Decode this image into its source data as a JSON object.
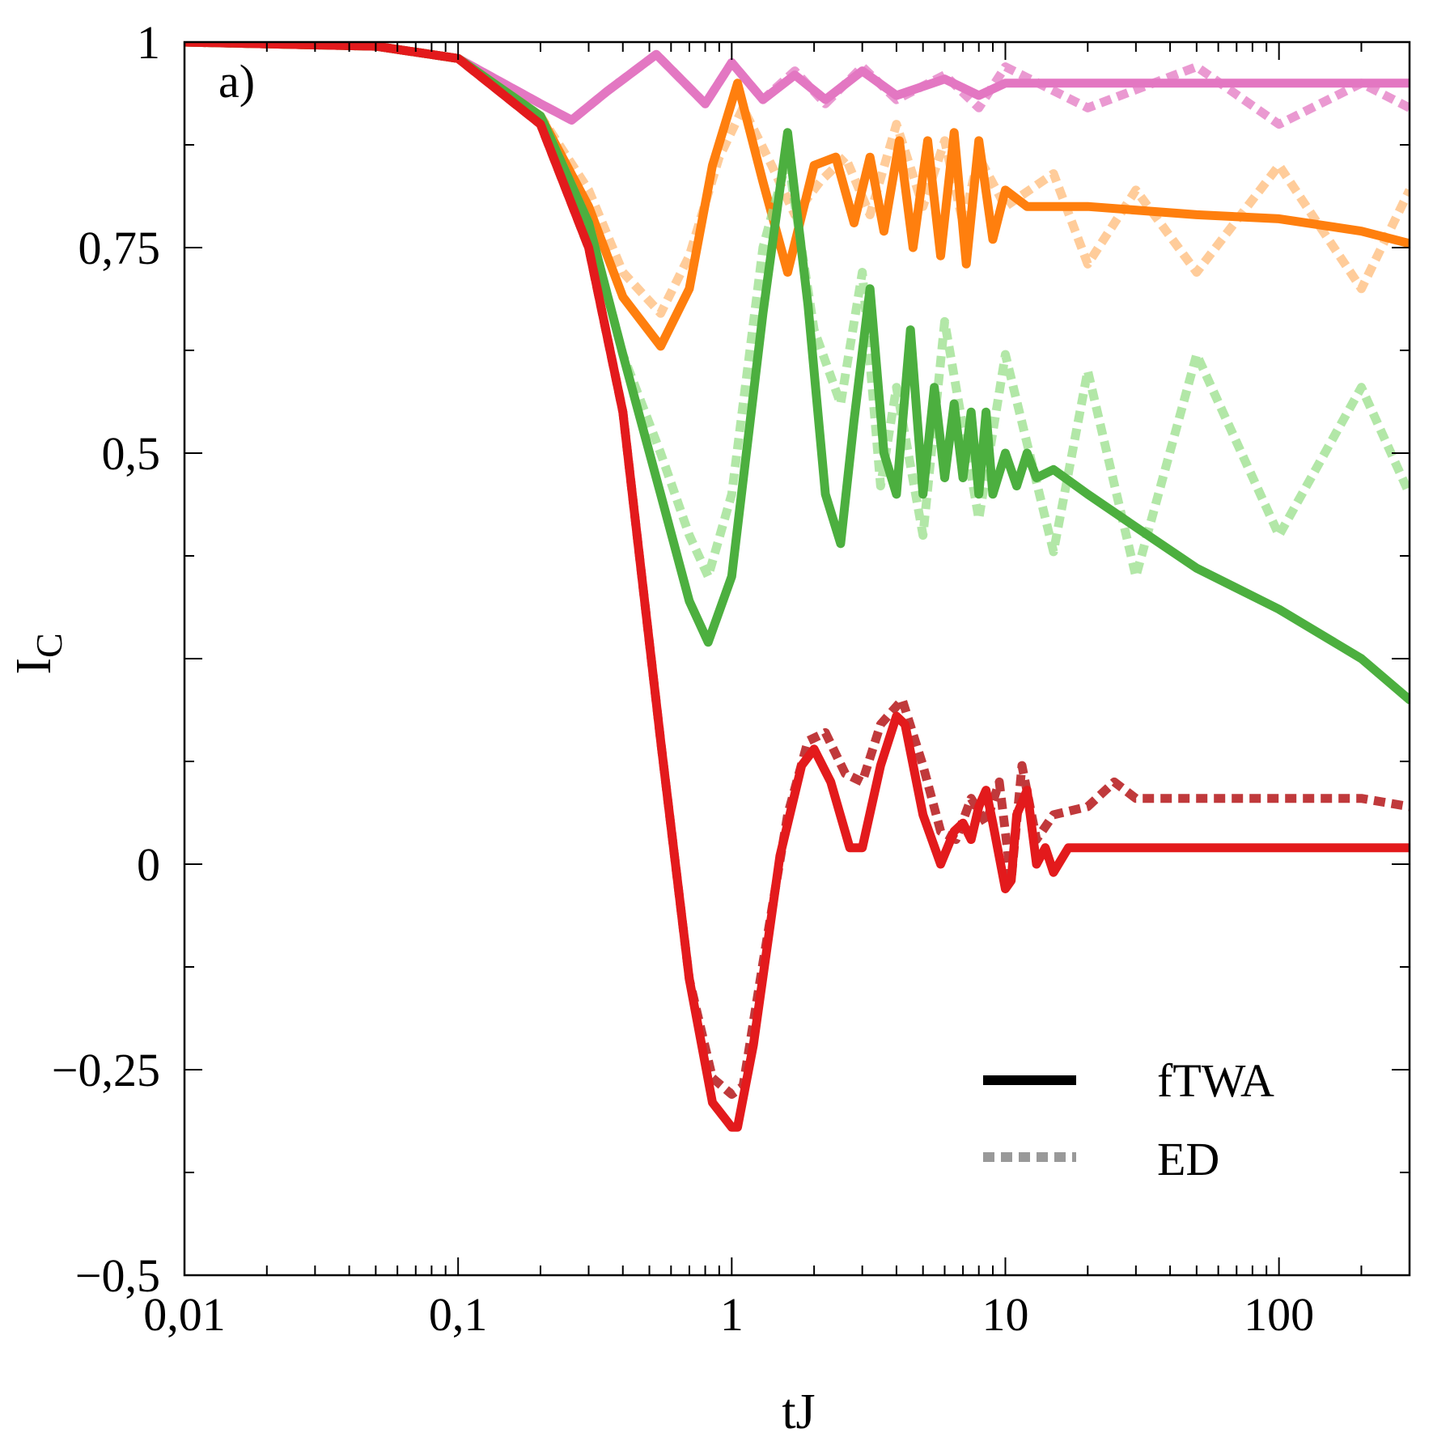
{
  "chart_data": {
    "type": "line",
    "panel_label": "a)",
    "xlabel": "tJ",
    "ylabel": "I",
    "ylabel_sub": "C",
    "xscale": "log",
    "xlim": [
      0.01,
      300
    ],
    "ylim": [
      -0.5,
      1
    ],
    "x_ticks": [
      {
        "value": 0.01,
        "label": "0,01"
      },
      {
        "value": 0.1,
        "label": "0,1"
      },
      {
        "value": 1,
        "label": "1"
      },
      {
        "value": 10,
        "label": "10"
      },
      {
        "value": 100,
        "label": "100"
      }
    ],
    "y_ticks": [
      {
        "value": 1,
        "label": "1"
      },
      {
        "value": 0.75,
        "label": "0,75"
      },
      {
        "value": 0.5,
        "label": "0,5"
      },
      {
        "value": 0,
        "label": "0"
      },
      {
        "value": -0.25,
        "label": "−0,25"
      },
      {
        "value": -0.5,
        "label": "−0,5"
      }
    ],
    "legend": {
      "placement": "bottom-right",
      "entries": [
        {
          "label": "fTWA",
          "style": "solid",
          "color": "#000000"
        },
        {
          "label": "ED",
          "style": "dotted",
          "color": "#999999"
        }
      ]
    },
    "series": [
      {
        "color": "#e377c2",
        "method": "ED",
        "x": [
          0.01,
          0.05,
          0.1,
          0.2,
          0.26,
          0.35,
          0.53,
          0.8,
          1.0,
          1.3,
          1.7,
          2.2,
          3,
          4,
          6,
          8,
          10,
          20,
          50,
          100,
          200,
          300
        ],
        "y": [
          1,
          0.995,
          0.98,
          0.925,
          0.905,
          0.94,
          0.985,
          0.925,
          0.975,
          0.93,
          0.965,
          0.925,
          0.97,
          0.93,
          0.96,
          0.92,
          0.97,
          0.92,
          0.97,
          0.9,
          0.95,
          0.92
        ]
      },
      {
        "color": "#e377c2",
        "method": "fTWA",
        "x": [
          0.01,
          0.05,
          0.1,
          0.2,
          0.26,
          0.35,
          0.53,
          0.8,
          1.0,
          1.3,
          1.7,
          2.2,
          3,
          4,
          6,
          8,
          10,
          20,
          50,
          100,
          200,
          300
        ],
        "y": [
          1,
          0.995,
          0.98,
          0.925,
          0.905,
          0.94,
          0.985,
          0.925,
          0.975,
          0.93,
          0.96,
          0.93,
          0.965,
          0.935,
          0.955,
          0.935,
          0.95,
          0.95,
          0.95,
          0.95,
          0.95,
          0.95
        ]
      },
      {
        "color": "#ffbb78",
        "method": "ED",
        "x": [
          0.01,
          0.05,
          0.1,
          0.2,
          0.3,
          0.4,
          0.55,
          0.7,
          0.9,
          1.1,
          1.4,
          1.7,
          2.1,
          2.6,
          3.2,
          4,
          5,
          6,
          7,
          8,
          10,
          15,
          20,
          30,
          50,
          100,
          200,
          300
        ],
        "y": [
          1,
          0.995,
          0.98,
          0.91,
          0.82,
          0.72,
          0.67,
          0.74,
          0.86,
          0.92,
          0.85,
          0.79,
          0.83,
          0.86,
          0.79,
          0.9,
          0.8,
          0.88,
          0.78,
          0.86,
          0.8,
          0.84,
          0.73,
          0.82,
          0.72,
          0.85,
          0.7,
          0.82
        ]
      },
      {
        "color": "#ff7f0e",
        "method": "fTWA",
        "x": [
          0.01,
          0.05,
          0.1,
          0.2,
          0.3,
          0.4,
          0.55,
          0.7,
          0.85,
          1.05,
          1.3,
          1.6,
          2.0,
          2.4,
          2.8,
          3.2,
          3.6,
          4.1,
          4.6,
          5.2,
          5.8,
          6.5,
          7.2,
          8,
          9,
          10,
          12,
          15,
          20,
          50,
          100,
          200,
          300
        ],
        "y": [
          1,
          0.995,
          0.98,
          0.91,
          0.8,
          0.69,
          0.63,
          0.7,
          0.85,
          0.95,
          0.83,
          0.72,
          0.85,
          0.86,
          0.78,
          0.86,
          0.77,
          0.88,
          0.75,
          0.88,
          0.74,
          0.89,
          0.73,
          0.88,
          0.76,
          0.82,
          0.8,
          0.8,
          0.8,
          0.79,
          0.785,
          0.77,
          0.755
        ]
      },
      {
        "color": "#98df8a",
        "method": "ED",
        "x": [
          0.01,
          0.05,
          0.1,
          0.2,
          0.3,
          0.4,
          0.55,
          0.7,
          0.82,
          1.0,
          1.3,
          1.6,
          2.0,
          2.5,
          3.0,
          3.5,
          4,
          5,
          6,
          8,
          10,
          15,
          20,
          30,
          50,
          100,
          200,
          300
        ],
        "y": [
          1,
          0.995,
          0.98,
          0.91,
          0.78,
          0.62,
          0.5,
          0.4,
          0.35,
          0.45,
          0.75,
          0.86,
          0.65,
          0.56,
          0.72,
          0.46,
          0.58,
          0.4,
          0.66,
          0.42,
          0.62,
          0.38,
          0.6,
          0.35,
          0.62,
          0.4,
          0.58,
          0.45
        ]
      },
      {
        "color": "#4caf3f",
        "method": "fTWA",
        "x": [
          0.01,
          0.05,
          0.1,
          0.2,
          0.3,
          0.4,
          0.55,
          0.7,
          0.82,
          1.0,
          1.3,
          1.6,
          1.9,
          2.2,
          2.5,
          2.8,
          3.2,
          3.6,
          4.0,
          4.5,
          5.0,
          5.5,
          6.0,
          6.5,
          7.0,
          7.5,
          8.0,
          8.5,
          9.0,
          10,
          11,
          12,
          13,
          15,
          20,
          30,
          50,
          100,
          200,
          300
        ],
        "y": [
          1,
          0.995,
          0.98,
          0.91,
          0.78,
          0.62,
          0.45,
          0.32,
          0.27,
          0.35,
          0.67,
          0.89,
          0.68,
          0.45,
          0.39,
          0.54,
          0.7,
          0.5,
          0.45,
          0.65,
          0.45,
          0.58,
          0.47,
          0.56,
          0.47,
          0.55,
          0.45,
          0.55,
          0.45,
          0.5,
          0.46,
          0.5,
          0.47,
          0.48,
          0.45,
          0.41,
          0.36,
          0.31,
          0.25,
          0.2
        ]
      },
      {
        "color": "#c0393b",
        "method": "ED",
        "x": [
          0.01,
          0.05,
          0.1,
          0.2,
          0.3,
          0.4,
          0.55,
          0.7,
          0.85,
          1.0,
          1.1,
          1.3,
          1.6,
          1.9,
          2.2,
          2.6,
          3.0,
          3.5,
          4.2,
          5.0,
          5.8,
          6.6,
          7.5,
          8.5,
          9.5,
          10.5,
          11.5,
          13,
          15,
          20,
          25,
          30,
          50,
          100,
          200,
          300
        ],
        "y": [
          1,
          0.995,
          0.98,
          0.9,
          0.75,
          0.55,
          0.15,
          -0.14,
          -0.26,
          -0.28,
          -0.27,
          -0.12,
          0.06,
          0.15,
          0.16,
          0.11,
          0.1,
          0.17,
          0.2,
          0.12,
          0.04,
          0.03,
          0.08,
          0.05,
          0.1,
          -0.02,
          0.12,
          0.03,
          0.06,
          0.07,
          0.1,
          0.08,
          0.08,
          0.08,
          0.08,
          0.07
        ]
      },
      {
        "color": "#e31a1c",
        "method": "fTWA",
        "x": [
          0.01,
          0.05,
          0.1,
          0.2,
          0.3,
          0.4,
          0.55,
          0.7,
          0.85,
          1.0,
          1.05,
          1.2,
          1.5,
          1.8,
          2.0,
          2.3,
          2.7,
          3.0,
          3.5,
          4.0,
          4.3,
          5.0,
          5.8,
          6.5,
          7.0,
          7.5,
          8.0,
          8.5,
          9.0,
          10,
          10.5,
          11,
          12,
          13,
          14,
          15,
          17,
          20,
          50,
          100,
          200,
          300
        ],
        "y": [
          1,
          0.995,
          0.98,
          0.9,
          0.75,
          0.55,
          0.15,
          -0.14,
          -0.29,
          -0.32,
          -0.32,
          -0.22,
          0.01,
          0.12,
          0.14,
          0.1,
          0.02,
          0.02,
          0.12,
          0.18,
          0.17,
          0.06,
          0.0,
          0.04,
          0.05,
          0.03,
          0.07,
          0.09,
          0.05,
          -0.03,
          -0.02,
          0.06,
          0.09,
          0.0,
          0.02,
          -0.01,
          0.02,
          0.02,
          0.02,
          0.02,
          0.02,
          0.02
        ]
      }
    ]
  }
}
